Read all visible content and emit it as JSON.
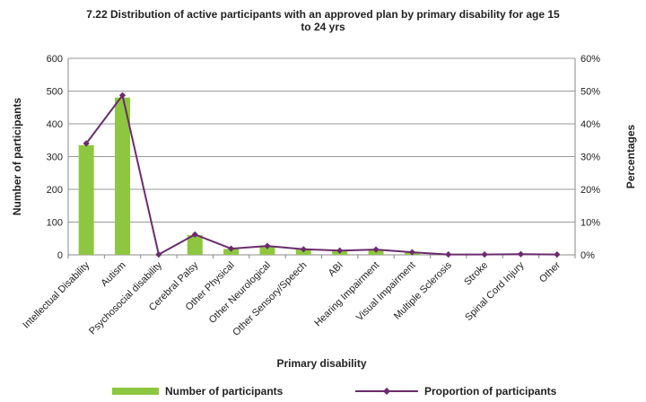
{
  "chart_data": {
    "type": "bar",
    "title": {
      "line1": "7.22 Distribution of active participants with an approved plan by primary disability for age 15",
      "line2": "to 24 yrs"
    },
    "xlabel": "Primary disability",
    "ylabel": "Number of participants",
    "y2label": "Percentages",
    "categories": [
      "Intellectual Disability",
      "Autism",
      "Psychosocial disability",
      "Cerebral Palsy",
      "Other Physical",
      "Other Neurological",
      "Other Sensory/Speech",
      "ABI",
      "Hearing Impairment",
      "Visual Impairment",
      "Multiple Sclerosis",
      "Stroke",
      "Spinal Cord Injury",
      "Other"
    ],
    "ylim": [
      0,
      600
    ],
    "y2lim": [
      0,
      0.6
    ],
    "yticks": [
      "0",
      "100",
      "200",
      "300",
      "400",
      "500",
      "600"
    ],
    "y2ticks": [
      "0%",
      "10%",
      "20%",
      "30%",
      "40%",
      "50%",
      "60%"
    ],
    "gridlines": true,
    "legend_position": "bottom",
    "series": [
      {
        "name": "Number of participants",
        "type": "bar",
        "axis": "left",
        "color": "#8DC63F",
        "values": [
          335,
          480,
          1,
          60,
          18,
          26,
          17,
          13,
          15,
          8,
          1,
          1,
          2,
          1
        ]
      },
      {
        "name": "Proportion of participants",
        "type": "line",
        "axis": "right",
        "color": "#6B2C6E",
        "values": [
          0.34,
          0.487,
          0.001,
          0.062,
          0.019,
          0.027,
          0.017,
          0.013,
          0.016,
          0.008,
          0.001,
          0.001,
          0.002,
          0.001
        ]
      }
    ]
  }
}
